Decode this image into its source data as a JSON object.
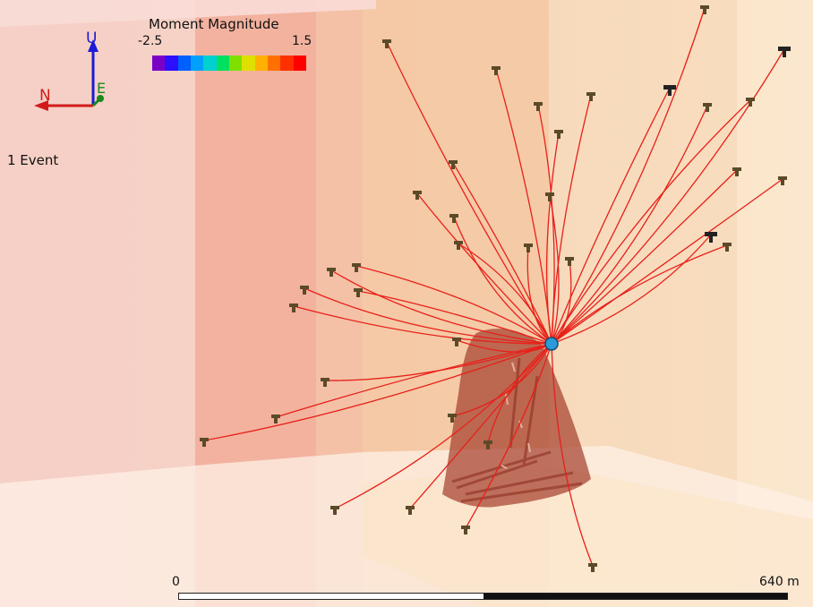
{
  "colorbar": {
    "title": "Moment Magnitude",
    "min_label": "-2.5",
    "max_label": "1.5",
    "colors": [
      "#7a00c8",
      "#2a10ff",
      "#0060ff",
      "#00a0ff",
      "#00d0d0",
      "#00e060",
      "#7fe000",
      "#e0e000",
      "#ffb000",
      "#ff7000",
      "#ff3000",
      "#ff0000"
    ]
  },
  "axes_triad": {
    "up_label": "U",
    "north_label": "N",
    "east_label": "E"
  },
  "event_count": "1 Event",
  "scale_bar": {
    "start_label": "0",
    "end_label": "640 m"
  },
  "colors": {
    "ray": "#e8201a",
    "event": "#2b9ad8",
    "station": "#5b4a28"
  }
}
